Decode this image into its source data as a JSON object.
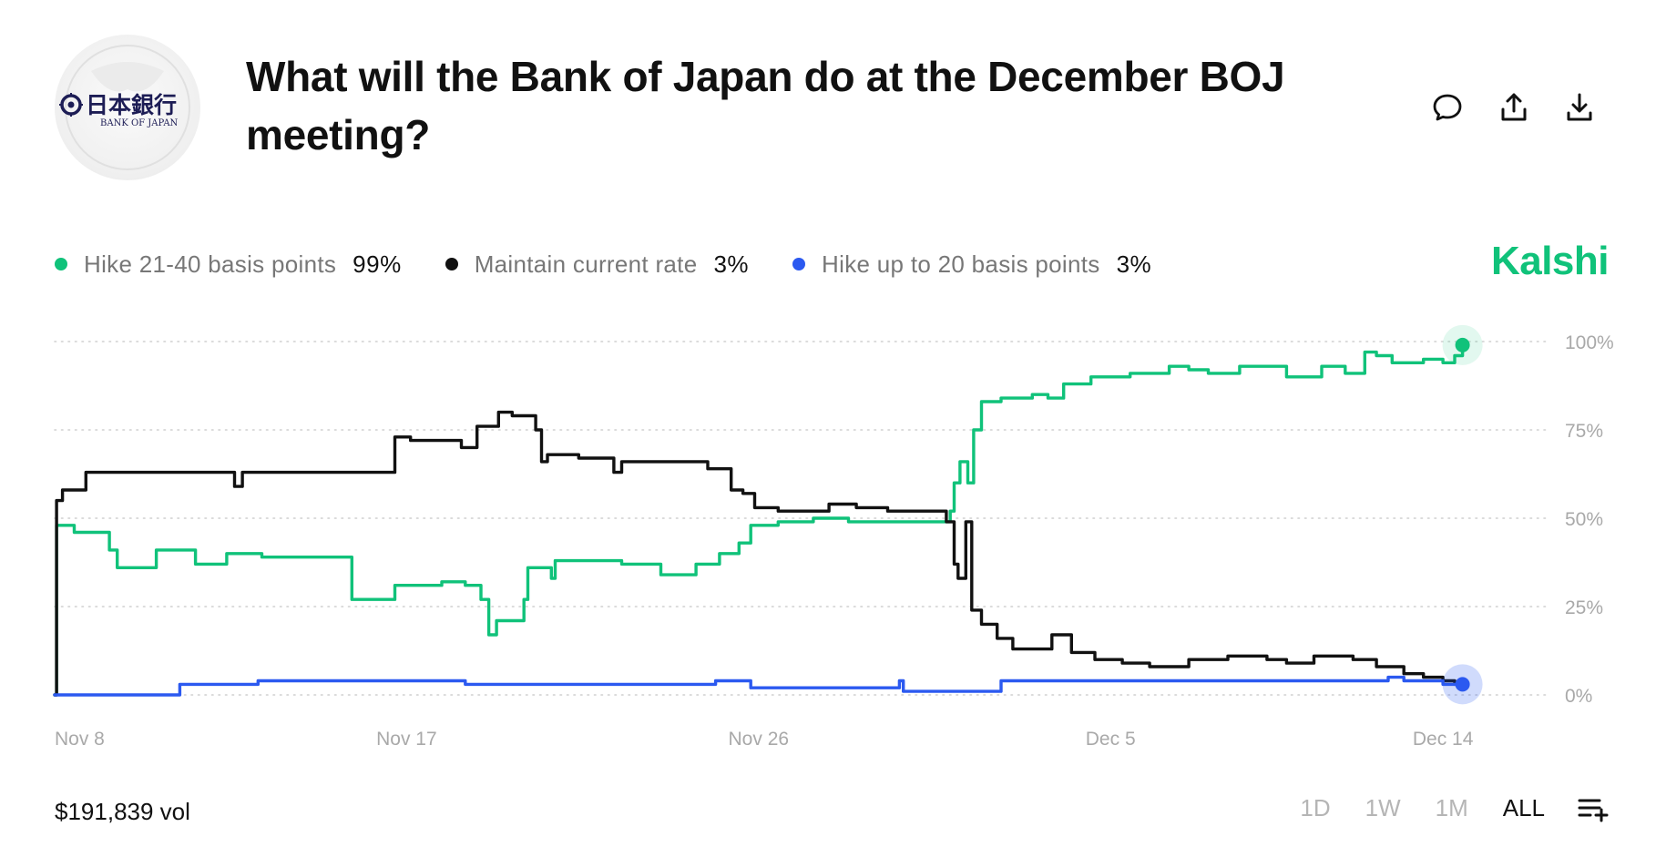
{
  "header": {
    "logo_text_jp": "日本銀行",
    "logo_text_en": "BANK OF JAPAN",
    "title": "What will the Bank of Japan do at the December BOJ meeting?",
    "icons": [
      "comment-icon",
      "share-icon",
      "download-icon"
    ]
  },
  "brand": "Kalshi",
  "legend": [
    {
      "label": "Hike 21-40 basis points",
      "value": "99%",
      "color": "#10c27a"
    },
    {
      "label": "Maintain current rate",
      "value": "3%",
      "color": "#111111"
    },
    {
      "label": "Hike up to 20 basis points",
      "value": "3%",
      "color": "#2b59f0"
    }
  ],
  "footer": {
    "volume": "$191,839 vol",
    "ranges": [
      "1D",
      "1W",
      "1M",
      "ALL"
    ],
    "active_range": "ALL"
  },
  "chart_data": {
    "type": "line",
    "title": "What will the Bank of Japan do at the December BOJ meeting?",
    "xlabel": "",
    "ylabel": "",
    "ylim": [
      0,
      100
    ],
    "xlim": [
      0,
      37.5
    ],
    "y_ticks": [
      0,
      25,
      50,
      75,
      100
    ],
    "y_tick_labels": [
      "0%",
      "25%",
      "50%",
      "75%",
      "100%"
    ],
    "x_ticks": [
      0,
      9,
      18,
      27,
      35.5
    ],
    "x_tick_labels": [
      "Nov 8",
      "Nov 17",
      "Nov 26",
      "Dec 5",
      "Dec 14"
    ],
    "grid": true,
    "legend_position": "top-left",
    "series": [
      {
        "name": "Hike 21-40 basis points",
        "color": "#10c27a",
        "last_value": 99,
        "points": [
          [
            0,
            0
          ],
          [
            0.05,
            48
          ],
          [
            0.4,
            48
          ],
          [
            0.5,
            46
          ],
          [
            1.2,
            46
          ],
          [
            1.4,
            41
          ],
          [
            1.6,
            36
          ],
          [
            2.3,
            36
          ],
          [
            2.5,
            36
          ],
          [
            2.6,
            41
          ],
          [
            3.5,
            41
          ],
          [
            3.6,
            37
          ],
          [
            4.3,
            37
          ],
          [
            4.4,
            40
          ],
          [
            5.2,
            40
          ],
          [
            5.3,
            39
          ],
          [
            7.3,
            39
          ],
          [
            7.6,
            27
          ],
          [
            8.5,
            27
          ],
          [
            8.7,
            31
          ],
          [
            9.8,
            31
          ],
          [
            9.9,
            32
          ],
          [
            10.5,
            31
          ],
          [
            10.7,
            31
          ],
          [
            10.9,
            27
          ],
          [
            11.1,
            17
          ],
          [
            11.3,
            21
          ],
          [
            11.8,
            21
          ],
          [
            12,
            27
          ],
          [
            12.1,
            36
          ],
          [
            12.7,
            33
          ],
          [
            12.8,
            38
          ],
          [
            14.5,
            37
          ],
          [
            15.2,
            37
          ],
          [
            15.5,
            34
          ],
          [
            16.2,
            34
          ],
          [
            16.4,
            37
          ],
          [
            17,
            40
          ],
          [
            17.5,
            43
          ],
          [
            17.8,
            48
          ],
          [
            18.5,
            49
          ],
          [
            19.4,
            50
          ],
          [
            20.3,
            49
          ],
          [
            21.3,
            49
          ],
          [
            22.8,
            49
          ],
          [
            22.9,
            52
          ],
          [
            23,
            60
          ],
          [
            23.15,
            66
          ],
          [
            23.35,
            60
          ],
          [
            23.5,
            75
          ],
          [
            23.7,
            83
          ],
          [
            24.2,
            84
          ],
          [
            24.6,
            84
          ],
          [
            25,
            85
          ],
          [
            25.4,
            84
          ],
          [
            25.8,
            88
          ],
          [
            26.5,
            90
          ],
          [
            27.5,
            91
          ],
          [
            28.5,
            93
          ],
          [
            29,
            92
          ],
          [
            29.5,
            91
          ],
          [
            30.3,
            93
          ],
          [
            30.8,
            93
          ],
          [
            31.5,
            90
          ],
          [
            32.4,
            93
          ],
          [
            33,
            91
          ],
          [
            33.5,
            97
          ],
          [
            33.8,
            96
          ],
          [
            34.2,
            94
          ],
          [
            35,
            95
          ],
          [
            35.5,
            94
          ],
          [
            35.8,
            96
          ],
          [
            36,
            99
          ]
        ]
      },
      {
        "name": "Maintain current rate",
        "color": "#111111",
        "last_value": 3,
        "points": [
          [
            0,
            0
          ],
          [
            0.05,
            55
          ],
          [
            0.2,
            58
          ],
          [
            0.7,
            58
          ],
          [
            0.8,
            63
          ],
          [
            4.5,
            63
          ],
          [
            4.6,
            59
          ],
          [
            4.8,
            63
          ],
          [
            8.6,
            63
          ],
          [
            8.7,
            73
          ],
          [
            9.1,
            72
          ],
          [
            10.2,
            72
          ],
          [
            10.4,
            70
          ],
          [
            10.8,
            76
          ],
          [
            11.2,
            76
          ],
          [
            11.35,
            80
          ],
          [
            11.7,
            79
          ],
          [
            12.1,
            79
          ],
          [
            12.3,
            75
          ],
          [
            12.45,
            66
          ],
          [
            12.6,
            68
          ],
          [
            13.2,
            68
          ],
          [
            13.4,
            67
          ],
          [
            14.2,
            67
          ],
          [
            14.3,
            63
          ],
          [
            14.5,
            66
          ],
          [
            15.5,
            66
          ],
          [
            16.3,
            66
          ],
          [
            16.7,
            64
          ],
          [
            17.1,
            64
          ],
          [
            17.3,
            58
          ],
          [
            17.6,
            57
          ],
          [
            17.9,
            53
          ],
          [
            18.5,
            52
          ],
          [
            19.2,
            52
          ],
          [
            19.8,
            54
          ],
          [
            20.5,
            53
          ],
          [
            21.3,
            52
          ],
          [
            22.5,
            52
          ],
          [
            22.8,
            49
          ],
          [
            23.0,
            37
          ],
          [
            23.1,
            33
          ],
          [
            23.3,
            49
          ],
          [
            23.45,
            24
          ],
          [
            23.7,
            20
          ],
          [
            24.1,
            16
          ],
          [
            24.5,
            13
          ],
          [
            25.2,
            13
          ],
          [
            25.5,
            17
          ],
          [
            26,
            12
          ],
          [
            26.6,
            10
          ],
          [
            27.3,
            9
          ],
          [
            28,
            8
          ],
          [
            29,
            10
          ],
          [
            30,
            11
          ],
          [
            31,
            10
          ],
          [
            31.5,
            9
          ],
          [
            32.2,
            11
          ],
          [
            33.2,
            10
          ],
          [
            33.8,
            8
          ],
          [
            34.5,
            6
          ],
          [
            35,
            5
          ],
          [
            35.5,
            4
          ],
          [
            35.8,
            3
          ],
          [
            36,
            3
          ]
        ]
      },
      {
        "name": "Hike up to 20 basis points",
        "color": "#2b59f0",
        "last_value": 3,
        "points": [
          [
            0,
            0
          ],
          [
            3.1,
            0
          ],
          [
            3.2,
            3
          ],
          [
            5.1,
            3
          ],
          [
            5.2,
            4
          ],
          [
            10.4,
            4
          ],
          [
            10.5,
            3
          ],
          [
            16.8,
            3
          ],
          [
            16.9,
            4
          ],
          [
            17.7,
            4
          ],
          [
            17.8,
            2
          ],
          [
            21.5,
            2
          ],
          [
            21.6,
            4
          ],
          [
            21.7,
            1
          ],
          [
            24.1,
            1
          ],
          [
            24.2,
            4
          ],
          [
            28.9,
            4
          ],
          [
            33.7,
            4
          ],
          [
            34.1,
            5
          ],
          [
            34.5,
            4
          ],
          [
            35.5,
            3
          ],
          [
            36,
            3
          ]
        ]
      }
    ]
  }
}
